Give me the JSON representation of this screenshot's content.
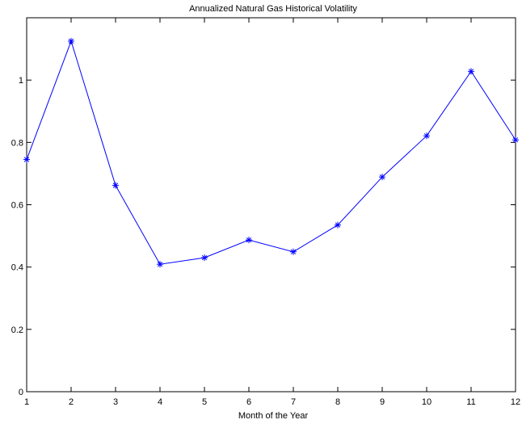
{
  "chart_data": {
    "type": "line",
    "title": "Annualized Natural Gas Historical Volatility",
    "xlabel": "Month of the Year",
    "ylabel": "",
    "xlim": [
      1,
      12
    ],
    "ylim": [
      0,
      1.2
    ],
    "x_ticks": [
      "1",
      "2",
      "3",
      "4",
      "5",
      "6",
      "7",
      "8",
      "9",
      "10",
      "11",
      "12"
    ],
    "y_ticks": [
      "0",
      "0.2",
      "0.4",
      "0.6",
      "0.8",
      "1"
    ],
    "grid": false,
    "series": [
      {
        "color": "#0000ff",
        "marker": "asterisk",
        "x": [
          1,
          2,
          3,
          4,
          5,
          6,
          7,
          8,
          9,
          10,
          11,
          12
        ],
        "values": [
          0.745,
          1.125,
          0.662,
          0.409,
          0.43,
          0.487,
          0.449,
          0.535,
          0.689,
          0.821,
          1.028,
          0.808
        ]
      }
    ]
  }
}
